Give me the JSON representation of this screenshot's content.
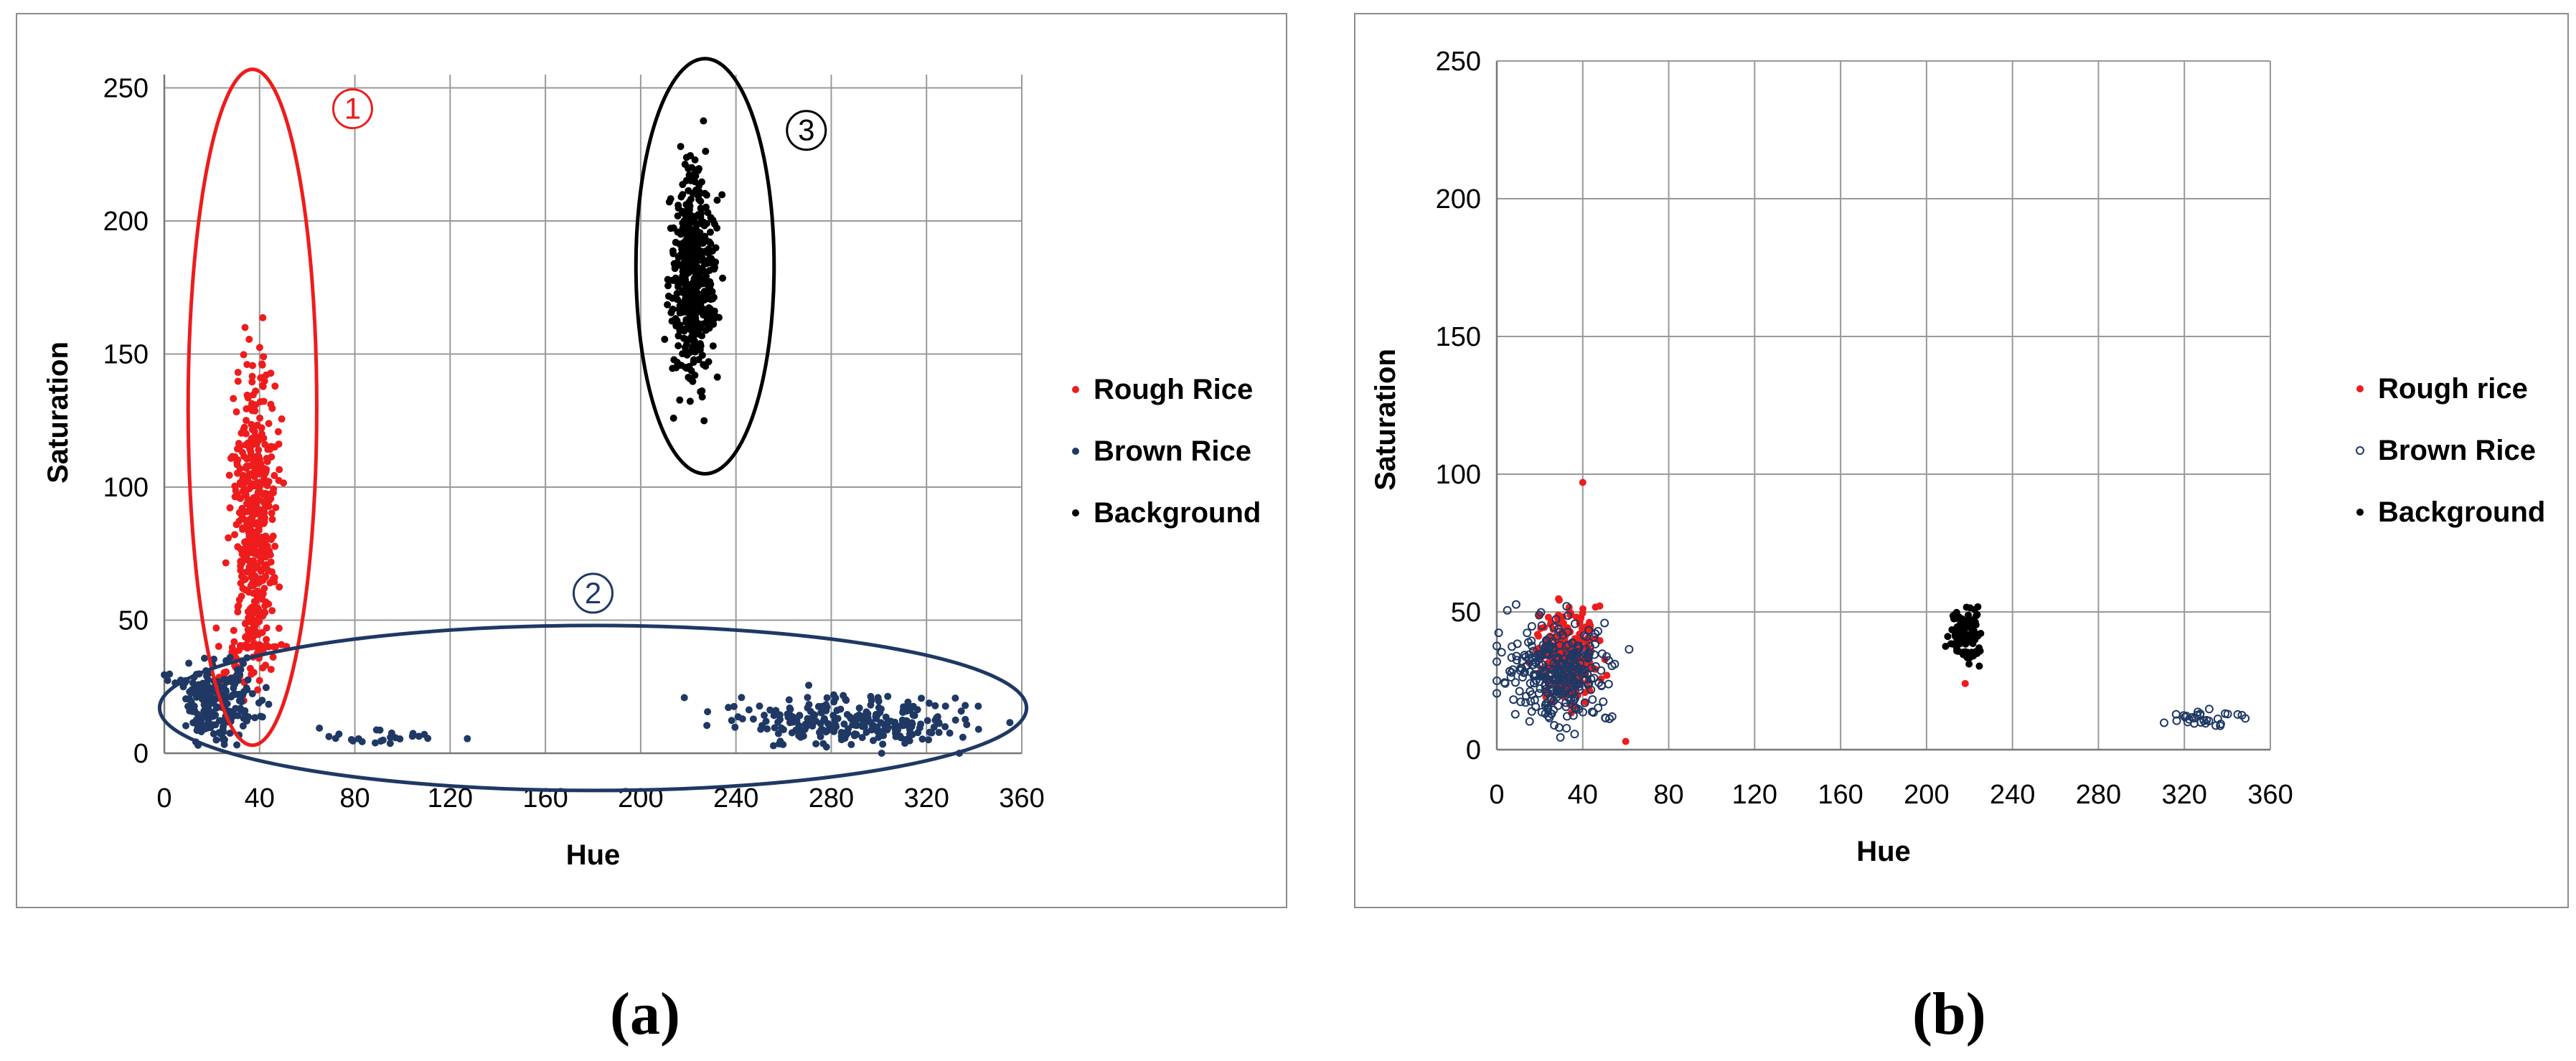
{
  "chart_data": [
    {
      "type": "scatter",
      "panel_label": "(a)",
      "xlabel": "Hue",
      "ylabel": "Saturation",
      "xlim": [
        0,
        360
      ],
      "ylim": [
        0,
        255
      ],
      "xticks": [
        0,
        40,
        80,
        120,
        160,
        200,
        240,
        280,
        320,
        360
      ],
      "yticks": [
        0,
        50,
        100,
        150,
        200,
        250
      ],
      "grid": true,
      "legend_position": "right",
      "series": [
        {
          "name": "Rough Rice",
          "color": "#ee1c1c",
          "marker": "filled-dot",
          "clusters": [
            {
              "x_range": [
                25,
                55
              ],
              "y_range": [
                40,
                255
              ],
              "count": 460,
              "x_center": 38,
              "y_center": 90
            },
            {
              "x_range": [
                15,
                65
              ],
              "y_range": [
                15,
                60
              ],
              "count": 60,
              "x_center": 35,
              "y_center": 35
            }
          ]
        },
        {
          "name": "Brown Rice",
          "color": "#1f3864",
          "marker": "filled-dot",
          "clusters": [
            {
              "x_range": [
                0,
                60
              ],
              "y_range": [
                0,
                60
              ],
              "count": 220,
              "x_center": 22,
              "y_center": 20
            },
            {
              "x_range": [
                60,
                150
              ],
              "y_range": [
                0,
                15
              ],
              "count": 24,
              "x_center": 95,
              "y_center": 7
            },
            {
              "x_range": [
                190,
                355
              ],
              "y_range": [
                0,
                38
              ],
              "count": 260,
              "x_center": 290,
              "y_center": 12
            }
          ]
        },
        {
          "name": "Background",
          "color": "#000000",
          "marker": "filled-dot",
          "clusters": [
            {
              "x_range": [
                208,
                238
              ],
              "y_range": [
                105,
                256
              ],
              "count": 480,
              "x_center": 222,
              "y_center": 180
            }
          ]
        }
      ],
      "annotations": [
        {
          "label": "1",
          "color": "#ee1c1c",
          "ellipse": {
            "cx": 37,
            "cy": 130,
            "rx": 27,
            "ry": 127
          }
        },
        {
          "label": "2",
          "color": "#1f3864",
          "ellipse": {
            "cx": 180,
            "cy": 17,
            "rx": 182,
            "ry": 31
          }
        },
        {
          "label": "3",
          "color": "#000000",
          "ellipse": {
            "cx": 227,
            "cy": 183,
            "rx": 29,
            "ry": 78
          }
        }
      ]
    },
    {
      "type": "scatter",
      "panel_label": "(b)",
      "xlabel": "Hue",
      "ylabel": "Saturation",
      "xlim": [
        0,
        360
      ],
      "ylim": [
        0,
        250
      ],
      "xticks": [
        0,
        40,
        80,
        120,
        160,
        200,
        240,
        280,
        320,
        360
      ],
      "yticks": [
        0,
        50,
        100,
        150,
        200,
        250
      ],
      "grid": true,
      "legend_position": "right",
      "series": [
        {
          "name": "Rough rice",
          "color": "#ee1c1c",
          "marker": "filled-dot",
          "clusters": [
            {
              "x_range": [
                15,
                60
              ],
              "y_range": [
                3,
                70
              ],
              "count": 260,
              "x_center": 33,
              "y_center": 35
            }
          ],
          "points": [
            [
              40,
              97
            ],
            [
              60,
              3
            ],
            [
              218,
              24
            ]
          ]
        },
        {
          "name": "Brown Rice",
          "color": "#1f3864",
          "marker": "open-circle",
          "clusters": [
            {
              "x_range": [
                0,
                80
              ],
              "y_range": [
                3,
                73
              ],
              "count": 320,
              "x_center": 28,
              "y_center": 28
            },
            {
              "x_range": [
                290,
                358
              ],
              "y_range": [
                5,
                20
              ],
              "count": 30,
              "x_center": 330,
              "y_center": 11
            }
          ]
        },
        {
          "name": "Background",
          "color": "#000000",
          "marker": "filled-dot",
          "clusters": [
            {
              "x_range": [
                205,
                230
              ],
              "y_range": [
                19,
                53
              ],
              "count": 110,
              "x_center": 218,
              "y_center": 42
            }
          ]
        }
      ]
    }
  ]
}
